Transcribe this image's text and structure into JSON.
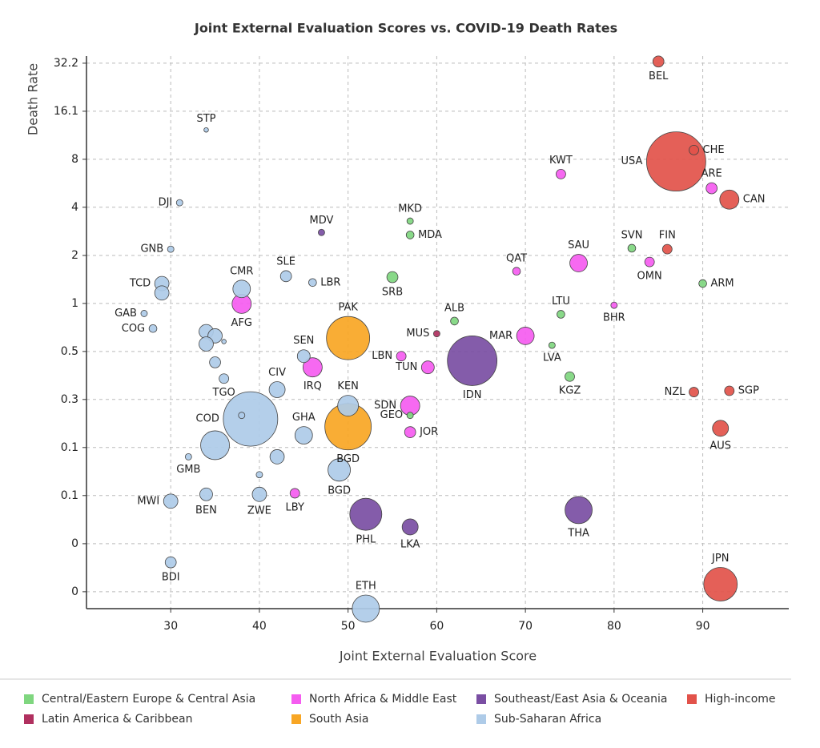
{
  "chart_data": {
    "type": "scatter",
    "title": "Joint External Evaluation Scores vs. COVID-19 Death Rates",
    "x_label": "Joint External Evaluation Score",
    "y_label": "Death Rate",
    "xlim": [
      20.5,
      99.7
    ],
    "xticks": [
      30,
      40,
      50,
      60,
      70,
      80,
      90
    ],
    "ylim": [
      0.0123,
      35.7
    ],
    "ylog": true,
    "grid": true,
    "legend": "bottom",
    "yticks": [
      {
        "value": 32.2,
        "label": "32.2"
      },
      {
        "value": 16.1,
        "label": "16.1"
      },
      {
        "value": 8.05,
        "label": "8"
      },
      {
        "value": 4.03,
        "label": "4"
      },
      {
        "value": 2.01,
        "label": "2"
      },
      {
        "value": 1.006,
        "label": "1"
      },
      {
        "value": 0.503,
        "label": "0.5"
      },
      {
        "value": 0.2516,
        "label": "0.3"
      },
      {
        "value": 0.1258,
        "label": "0.1"
      },
      {
        "value": 0.0629,
        "label": "0.1"
      },
      {
        "value": 0.0314,
        "label": "0"
      },
      {
        "value": 0.0157,
        "label": "0"
      }
    ],
    "series": [
      {
        "name": "Central/Eastern Europe & Central Asia",
        "color": "#7fd67f",
        "labels": [
          "ALB",
          "MKD",
          "MDA",
          "SRB",
          "SVN",
          "LTU",
          "LVA",
          "KGZ",
          "ARM",
          "GEO"
        ],
        "x": [
          62,
          57,
          57,
          55,
          82,
          74,
          73,
          75,
          90,
          57
        ],
        "values": [
          0.78,
          3.3,
          2.7,
          1.47,
          2.23,
          0.86,
          0.55,
          0.35,
          1.34,
          0.2
        ],
        "sizes": [
          6,
          4,
          6,
          12,
          6,
          6,
          4,
          9,
          6,
          4
        ]
      },
      {
        "name": "North Africa & Middle East",
        "color": "#f55cf0",
        "labels": [
          "KWT",
          "ARE",
          "SAU",
          "QAT",
          "OMN",
          "BHR",
          "MAR",
          "LBN",
          "TUN",
          "IRQ",
          "AFG",
          "SDN",
          "JOR",
          "LBY"
        ],
        "x": [
          74,
          91,
          76,
          69,
          84,
          80,
          70,
          56,
          59,
          46,
          38,
          57,
          57,
          44
        ],
        "values": [
          6.5,
          5.3,
          1.8,
          1.6,
          1.83,
          0.98,
          0.63,
          0.47,
          0.4,
          0.4,
          1.0,
          0.23,
          0.157,
          0.065
        ],
        "sizes": [
          9,
          12,
          30,
          6,
          9,
          4,
          30,
          9,
          16,
          36,
          36,
          36,
          12,
          9
        ]
      },
      {
        "name": "Southeast/East Asia & Oceania",
        "color": "#7a4ea3",
        "labels": [
          "MDV",
          "IDN",
          "PHL",
          "LKA",
          "THA"
        ],
        "x": [
          47,
          64,
          52,
          57,
          76
        ],
        "values": [
          2.8,
          0.44,
          0.048,
          0.04,
          0.051
        ],
        "sizes": [
          4,
          240,
          100,
          25,
          72
        ]
      },
      {
        "name": "High-income",
        "color": "#e2524a",
        "labels": [
          "BEL",
          "CHE",
          "USA",
          "CAN",
          "FIN",
          "NZL",
          "SGP",
          "AUS",
          "JPN"
        ],
        "x": [
          85,
          89,
          87,
          93,
          86,
          89,
          93,
          92,
          92
        ],
        "values": [
          33,
          9.2,
          7.8,
          4.5,
          2.2,
          0.28,
          0.285,
          0.166,
          0.0175
        ],
        "sizes": [
          12,
          9,
          342,
          36,
          9,
          9,
          9,
          25,
          110
        ]
      },
      {
        "name": "Latin America & Caribbean",
        "color": "#b0305f",
        "labels": [
          "MUS"
        ],
        "x": [
          60
        ],
        "values": [
          0.65
        ],
        "sizes": [
          4
        ]
      },
      {
        "name": "South Asia",
        "color": "#f8a624",
        "labels": [
          "PAK",
          "BGD"
        ],
        "x": [
          50,
          50
        ],
        "values": [
          0.61,
          0.17
        ],
        "sizes": [
          182,
          210
        ]
      },
      {
        "name": "Sub-Saharan Africa",
        "color": "#aecbe8",
        "labels": [
          "STP",
          "DJI",
          "GNB",
          "TCD",
          null,
          "GAB",
          "COG",
          "CMR",
          "SLE",
          "LBR",
          null,
          null,
          null,
          null,
          null,
          "TGO",
          "CIV",
          "SEN",
          "KEN",
          "COD",
          null,
          "GHA",
          null,
          "GMB",
          null,
          "BGD",
          null,
          "MWI",
          "BEN",
          "ZWE",
          "BDI",
          "ETH"
        ],
        "x": [
          34,
          31,
          30,
          29,
          29,
          27,
          28,
          38,
          43,
          46,
          34,
          35,
          36,
          34,
          35,
          36,
          42,
          45,
          50,
          39,
          38,
          45,
          35,
          32,
          42,
          49,
          40,
          30,
          34,
          40,
          30,
          52
        ],
        "values": [
          12.3,
          4.3,
          2.2,
          1.34,
          1.17,
          0.87,
          0.7,
          1.24,
          1.49,
          1.36,
          0.67,
          0.63,
          0.58,
          0.56,
          0.43,
          0.34,
          0.29,
          0.47,
          0.23,
          0.19,
          0.2,
          0.15,
          0.13,
          0.11,
          0.11,
          0.091,
          0.085,
          0.058,
          0.064,
          0.064,
          0.024,
          0.0123
        ],
        "sizes": [
          2,
          4,
          4,
          20,
          20,
          4,
          6,
          30,
          12,
          6,
          20,
          20,
          2,
          20,
          12,
          9,
          25,
          16,
          42,
          289,
          4,
          30,
          81,
          4,
          20,
          49,
          4,
          20,
          16,
          20,
          12,
          72
        ]
      }
    ]
  }
}
